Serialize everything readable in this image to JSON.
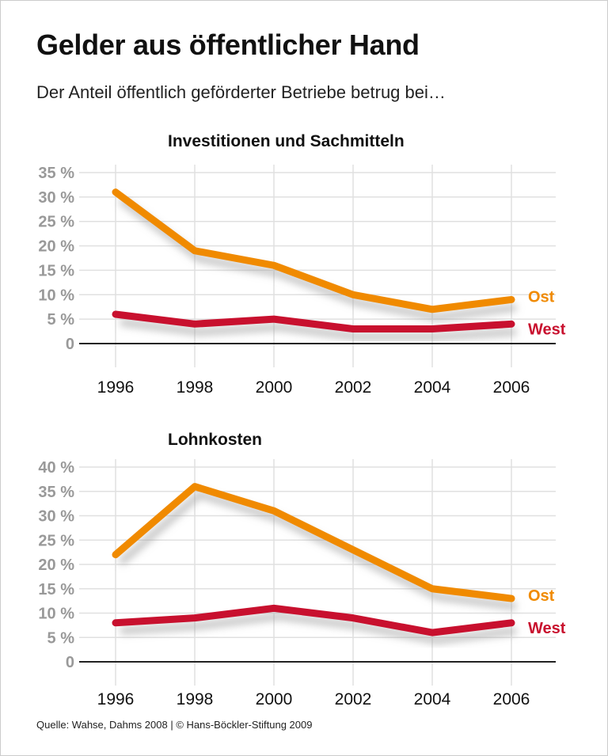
{
  "title": "Gelder aus öffentlicher Hand",
  "subtitle": "Der Anteil öffentlich geförderter Betriebe betrug bei…",
  "source": "Quelle: Wahse, Dahms 2008 | © Hans-Böckler-Stiftung 2009",
  "colors": {
    "Ost": "#f08a00",
    "West": "#c8102e",
    "grid": "#e0e0e0",
    "ticks": "#999999"
  },
  "chart_data": [
    {
      "type": "line",
      "title": "Investitionen und Sachmitteln",
      "x": [
        "1996",
        "1998",
        "2000",
        "2002",
        "2004",
        "2006"
      ],
      "ylim": [
        0,
        35
      ],
      "yticks": [
        "0",
        "5 %",
        "10 %",
        "15 %",
        "20 %",
        "25 %",
        "30 %",
        "35 %"
      ],
      "grid": true,
      "legend": "end-of-line labels",
      "series": [
        {
          "name": "Ost",
          "values": [
            31,
            19,
            16,
            10,
            7,
            9
          ]
        },
        {
          "name": "West",
          "values": [
            6,
            4,
            5,
            3,
            3,
            4
          ]
        }
      ]
    },
    {
      "type": "line",
      "title": "Lohnkosten",
      "x": [
        "1996",
        "1998",
        "2000",
        "2002",
        "2004",
        "2006"
      ],
      "ylim": [
        0,
        40
      ],
      "yticks": [
        "0",
        "5 %",
        "10 %",
        "15 %",
        "20 %",
        "25 %",
        "30 %",
        "35 %",
        "40 %"
      ],
      "grid": true,
      "legend": "end-of-line labels",
      "series": [
        {
          "name": "Ost",
          "values": [
            22,
            36,
            31,
            23,
            15,
            13
          ]
        },
        {
          "name": "West",
          "values": [
            8,
            9,
            11,
            9,
            6,
            8
          ]
        }
      ]
    }
  ]
}
